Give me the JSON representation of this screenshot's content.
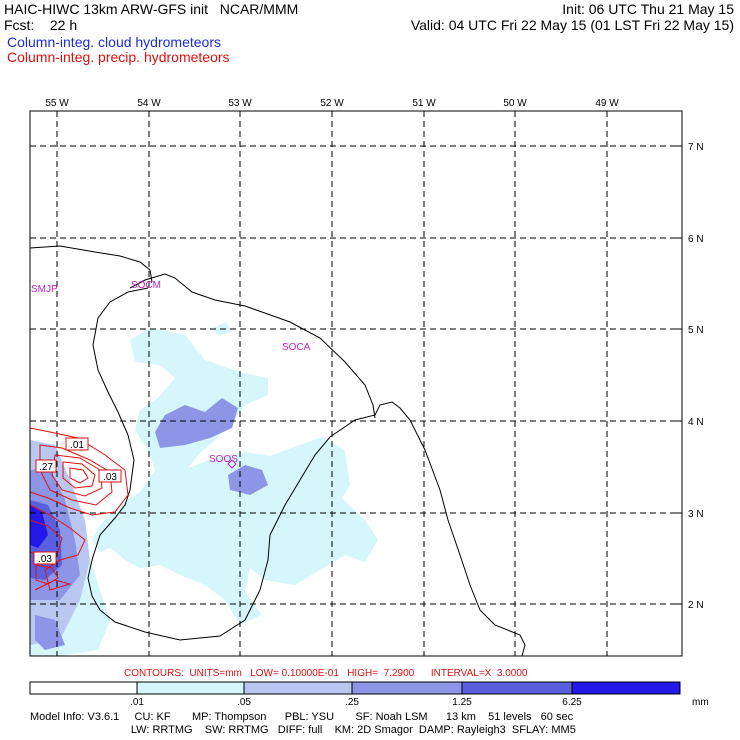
{
  "header": {
    "title_left": "HAIC-HIWC 13km ARW-GFS init   NCAR/MMM",
    "fcst": "Fcst:    22 h",
    "init": "Init: 06 UTC Thu 21 May 15",
    "valid": "Valid: 04 UTC Fri 22 May 15 (01 LST Fri 22 May 15)",
    "field_cloud": "Column-integ. cloud hydrometeors",
    "field_precip": "Column-integ. precip. hydrometeors"
  },
  "colors": {
    "cloud_text": "#1f2bd6",
    "precip_contour": "#e01010",
    "station_text": "#c020c0",
    "shade_1": "#d5f6fb",
    "shade_2": "#b9c7f1",
    "shade_3": "#8c95e6",
    "shade_4": "#5a5fe0",
    "shade_5": "#2418e8"
  },
  "axes": {
    "lon_labels": [
      "55 W",
      "54 W",
      "53 W",
      "52 W",
      "51 W",
      "50 W",
      "49 W"
    ],
    "lat_labels": [
      "7 N",
      "6 N",
      "5 N",
      "4 N",
      "3 N",
      "2 N"
    ]
  },
  "stations": [
    {
      "id": "SMJP",
      "lon": -55.3,
      "lat": 5.45
    },
    {
      "id": "SOCM",
      "lon": -54.1,
      "lat": 5.5
    },
    {
      "id": "SOCA",
      "lon": -52.3,
      "lat": 4.8
    },
    {
      "id": "SOOS",
      "lon": -52.1,
      "lat": 3.55
    }
  ],
  "contour_labels": [
    ".01",
    ".27",
    ".03",
    ".03"
  ],
  "contours_info": "CONTOURS:  UNITS=mm   LOW= 0.10000E-01   HIGH=  7.2900      INTERVAL=X  3.0000",
  "colorbar": {
    "ticks": [
      ".01",
      ".05",
      ".25",
      "1.25",
      "6.25"
    ],
    "units": "mm"
  },
  "model_info": {
    "line1": "Model Info: V3.6.1     CU: KF       MP: Thompson      PBL: YSU       SF: Noah LSM      13 km    51 levels   60 sec",
    "line2": "                                 LW: RRTMG    SW: RRTMG   DIFF: full    KM: 2D Smagor  DAMP: Rayleigh3  SFLAY: MM5"
  }
}
